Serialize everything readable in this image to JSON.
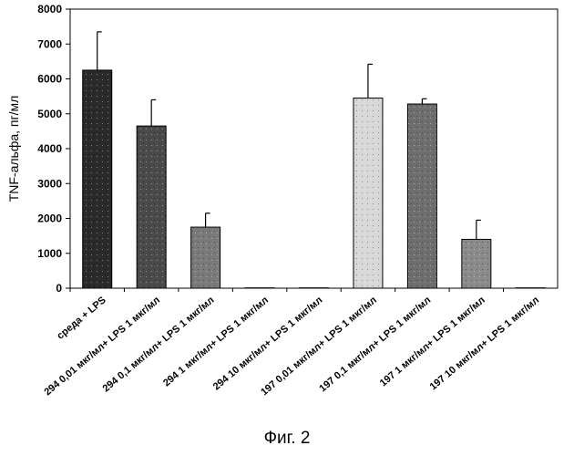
{
  "chart_data": {
    "type": "bar",
    "title": "",
    "xlabel": "",
    "ylabel": "TNF-альфа, пг/мл",
    "ylim": [
      0,
      8000
    ],
    "yticks": [
      0,
      1000,
      2000,
      3000,
      4000,
      5000,
      6000,
      7000,
      8000
    ],
    "grid": false,
    "legend": "none",
    "categories": [
      "среда + LPS",
      "294 0,01 мкг/мл+ LPS 1 мкг/мл",
      "294 0,1 мкг/мл+ LPS 1 мкг/мл",
      "294 1 мкг/мл+ LPS 1 мкг/мл",
      "294 10 мкг/мл+ LPS 1 мкг/мл",
      "197 0,01 мкг/мл+ LPS 1 мкг/мл",
      "197 0,1 мкг/мл+ LPS 1 мкг/мл",
      "197 1 мкг/мл+ LPS 1 мкг/мл",
      "197 10 мкг/мл+ LPS 1 мкг/мл"
    ],
    "values": [
      6250,
      4650,
      1750,
      10,
      10,
      5450,
      5280,
      1400,
      10
    ],
    "errors": [
      1100,
      750,
      400,
      0,
      0,
      970,
      150,
      550,
      0
    ],
    "colors": [
      "#2a2a2a",
      "#4a4a4a",
      "#7a7a7a",
      "#555555",
      "#555555",
      "#d8d8d8",
      "#6e6e6e",
      "#8a8a8a",
      "#555555"
    ]
  },
  "caption": "Фиг. 2"
}
